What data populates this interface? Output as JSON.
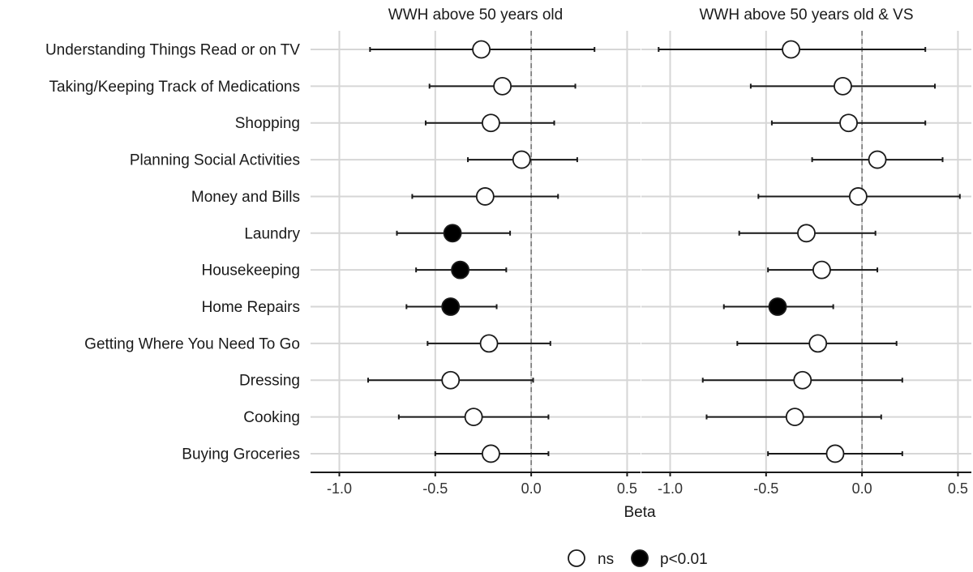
{
  "chart_data": {
    "type": "forest",
    "xlabel": "Beta",
    "xlim": [
      -1.15,
      0.57
    ],
    "xticks": [
      -1.0,
      -0.5,
      0.0,
      0.5
    ],
    "xtick_labels": [
      "-1.0",
      "-0.5",
      "0.0",
      "0.5"
    ],
    "reference_line": 0.0,
    "categories": [
      "Understanding Things Read or on TV",
      "Taking/Keeping Track of Medications",
      "Shopping",
      "Planning Social Activities",
      "Money and Bills",
      "Laundry",
      "Housekeeping",
      "Home Repairs",
      "Getting Where You Need To Go",
      "Dressing",
      "Cooking",
      "Buying Groceries"
    ],
    "legend": {
      "position": "bottom",
      "entries": [
        {
          "label": "ns",
          "fill": "#ffffff"
        },
        {
          "label": "p<0.01",
          "fill": "#000000"
        }
      ]
    },
    "panels": [
      {
        "title": "WWH above 50 years old",
        "estimates": [
          -0.26,
          -0.15,
          -0.21,
          -0.05,
          -0.24,
          -0.41,
          -0.37,
          -0.42,
          -0.22,
          -0.42,
          -0.3,
          -0.21
        ],
        "lower": [
          -0.84,
          -0.53,
          -0.55,
          -0.33,
          -0.62,
          -0.7,
          -0.6,
          -0.65,
          -0.54,
          -0.85,
          -0.69,
          -0.5
        ],
        "upper": [
          0.33,
          0.23,
          0.12,
          0.24,
          0.14,
          -0.11,
          -0.13,
          -0.18,
          0.1,
          0.01,
          0.09,
          0.09
        ],
        "significance": [
          "ns",
          "ns",
          "ns",
          "ns",
          "ns",
          "p<0.01",
          "p<0.01",
          "p<0.01",
          "ns",
          "ns",
          "ns",
          "ns"
        ]
      },
      {
        "title": "WWH above 50 years old & VS",
        "estimates": [
          -0.37,
          -0.1,
          -0.07,
          0.08,
          -0.02,
          -0.29,
          -0.21,
          -0.44,
          -0.23,
          -0.31,
          -0.35,
          -0.14
        ],
        "lower": [
          -1.06,
          -0.58,
          -0.47,
          -0.26,
          -0.54,
          -0.64,
          -0.49,
          -0.72,
          -0.65,
          -0.83,
          -0.81,
          -0.49
        ],
        "upper": [
          0.33,
          0.38,
          0.33,
          0.42,
          0.51,
          0.07,
          0.08,
          -0.15,
          0.18,
          0.21,
          0.1,
          0.21
        ],
        "significance": [
          "ns",
          "ns",
          "ns",
          "ns",
          "ns",
          "ns",
          "ns",
          "p<0.01",
          "ns",
          "ns",
          "ns",
          "ns"
        ]
      }
    ]
  }
}
